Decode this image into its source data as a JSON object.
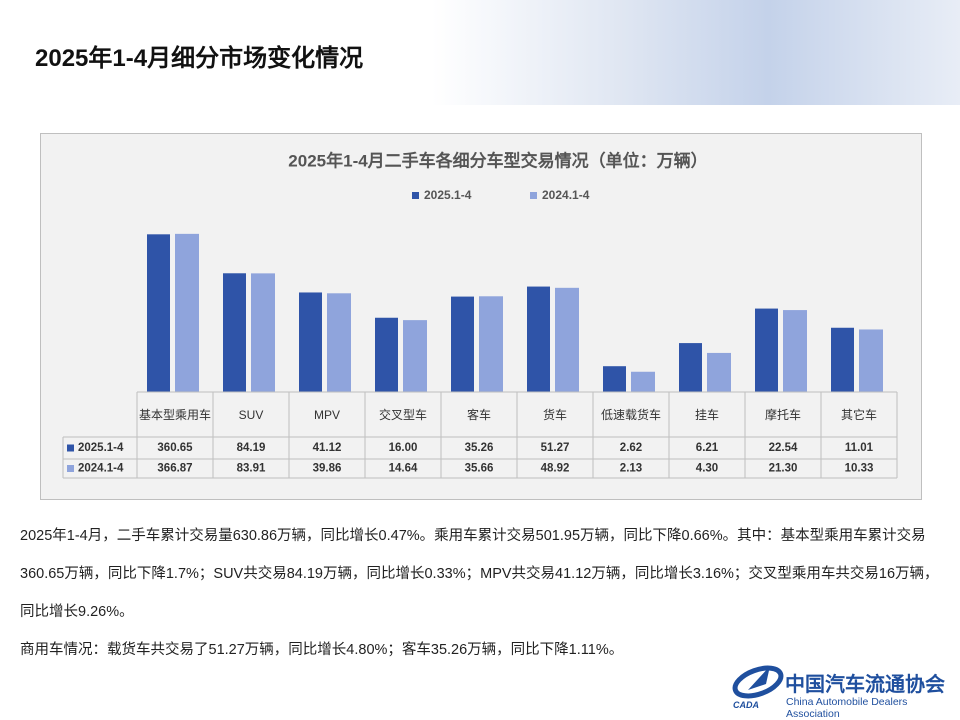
{
  "header": {
    "title": "2025年1-4月细分市场变化情况"
  },
  "chart_data": {
    "type": "bar",
    "title": "2025年1-4月二手车各细分车型交易情况（单位：万辆）",
    "categories": [
      "基本型乘用车",
      "SUV",
      "MPV",
      "交叉型车",
      "客车",
      "货车",
      "低速载货车",
      "挂车",
      "摩托车",
      "其它车"
    ],
    "series": [
      {
        "name": "2025.1-4",
        "color": "#2f54a8",
        "values": [
          360.65,
          84.19,
          41.12,
          16,
          35.26,
          51.27,
          2.62,
          6.21,
          22.54,
          11.01
        ],
        "value_labels": [
          "360.65",
          "84.19",
          "41.12",
          "16.00",
          "35.26",
          "51.27",
          "2.62",
          "6.21",
          "22.54",
          "11.01"
        ]
      },
      {
        "name": "2024.1-4",
        "color": "#8fa4dc",
        "values": [
          366.87,
          83.91,
          39.86,
          14.64,
          35.66,
          48.92,
          2.13,
          4.3,
          21.3,
          10.33
        ],
        "value_labels": [
          "366.87",
          "83.91",
          "39.86",
          "14.64",
          "35.66",
          "48.92",
          "2.13",
          "4.30",
          "21.30",
          "10.33"
        ]
      }
    ],
    "log_scale": true,
    "ylim": [
      1,
      1000
    ],
    "legend": "top"
  },
  "text": {
    "paragraphs": [
      "2025年1-4月，二手车累计交易量630.86万辆，同比增长0.47%。乘用车累计交易501.95万辆，同比下降0.66%。其中：基本型乘用车累计交易360.65万辆，同比下降1.7%；SUV共交易84.19万辆，同比增长0.33%；MPV共交易41.12万辆，同比增长3.16%；交叉型乘用车共交易16万辆，同比增长9.26%。",
      "商用车情况：载货车共交易了51.27万辆，同比增长4.80%；客车35.26万辆，同比下降1.11%。"
    ]
  },
  "logo": {
    "name_cn": "中国汽车流通协会",
    "name_en": "China Automobile Dealers Association",
    "abbr": "CADA"
  }
}
